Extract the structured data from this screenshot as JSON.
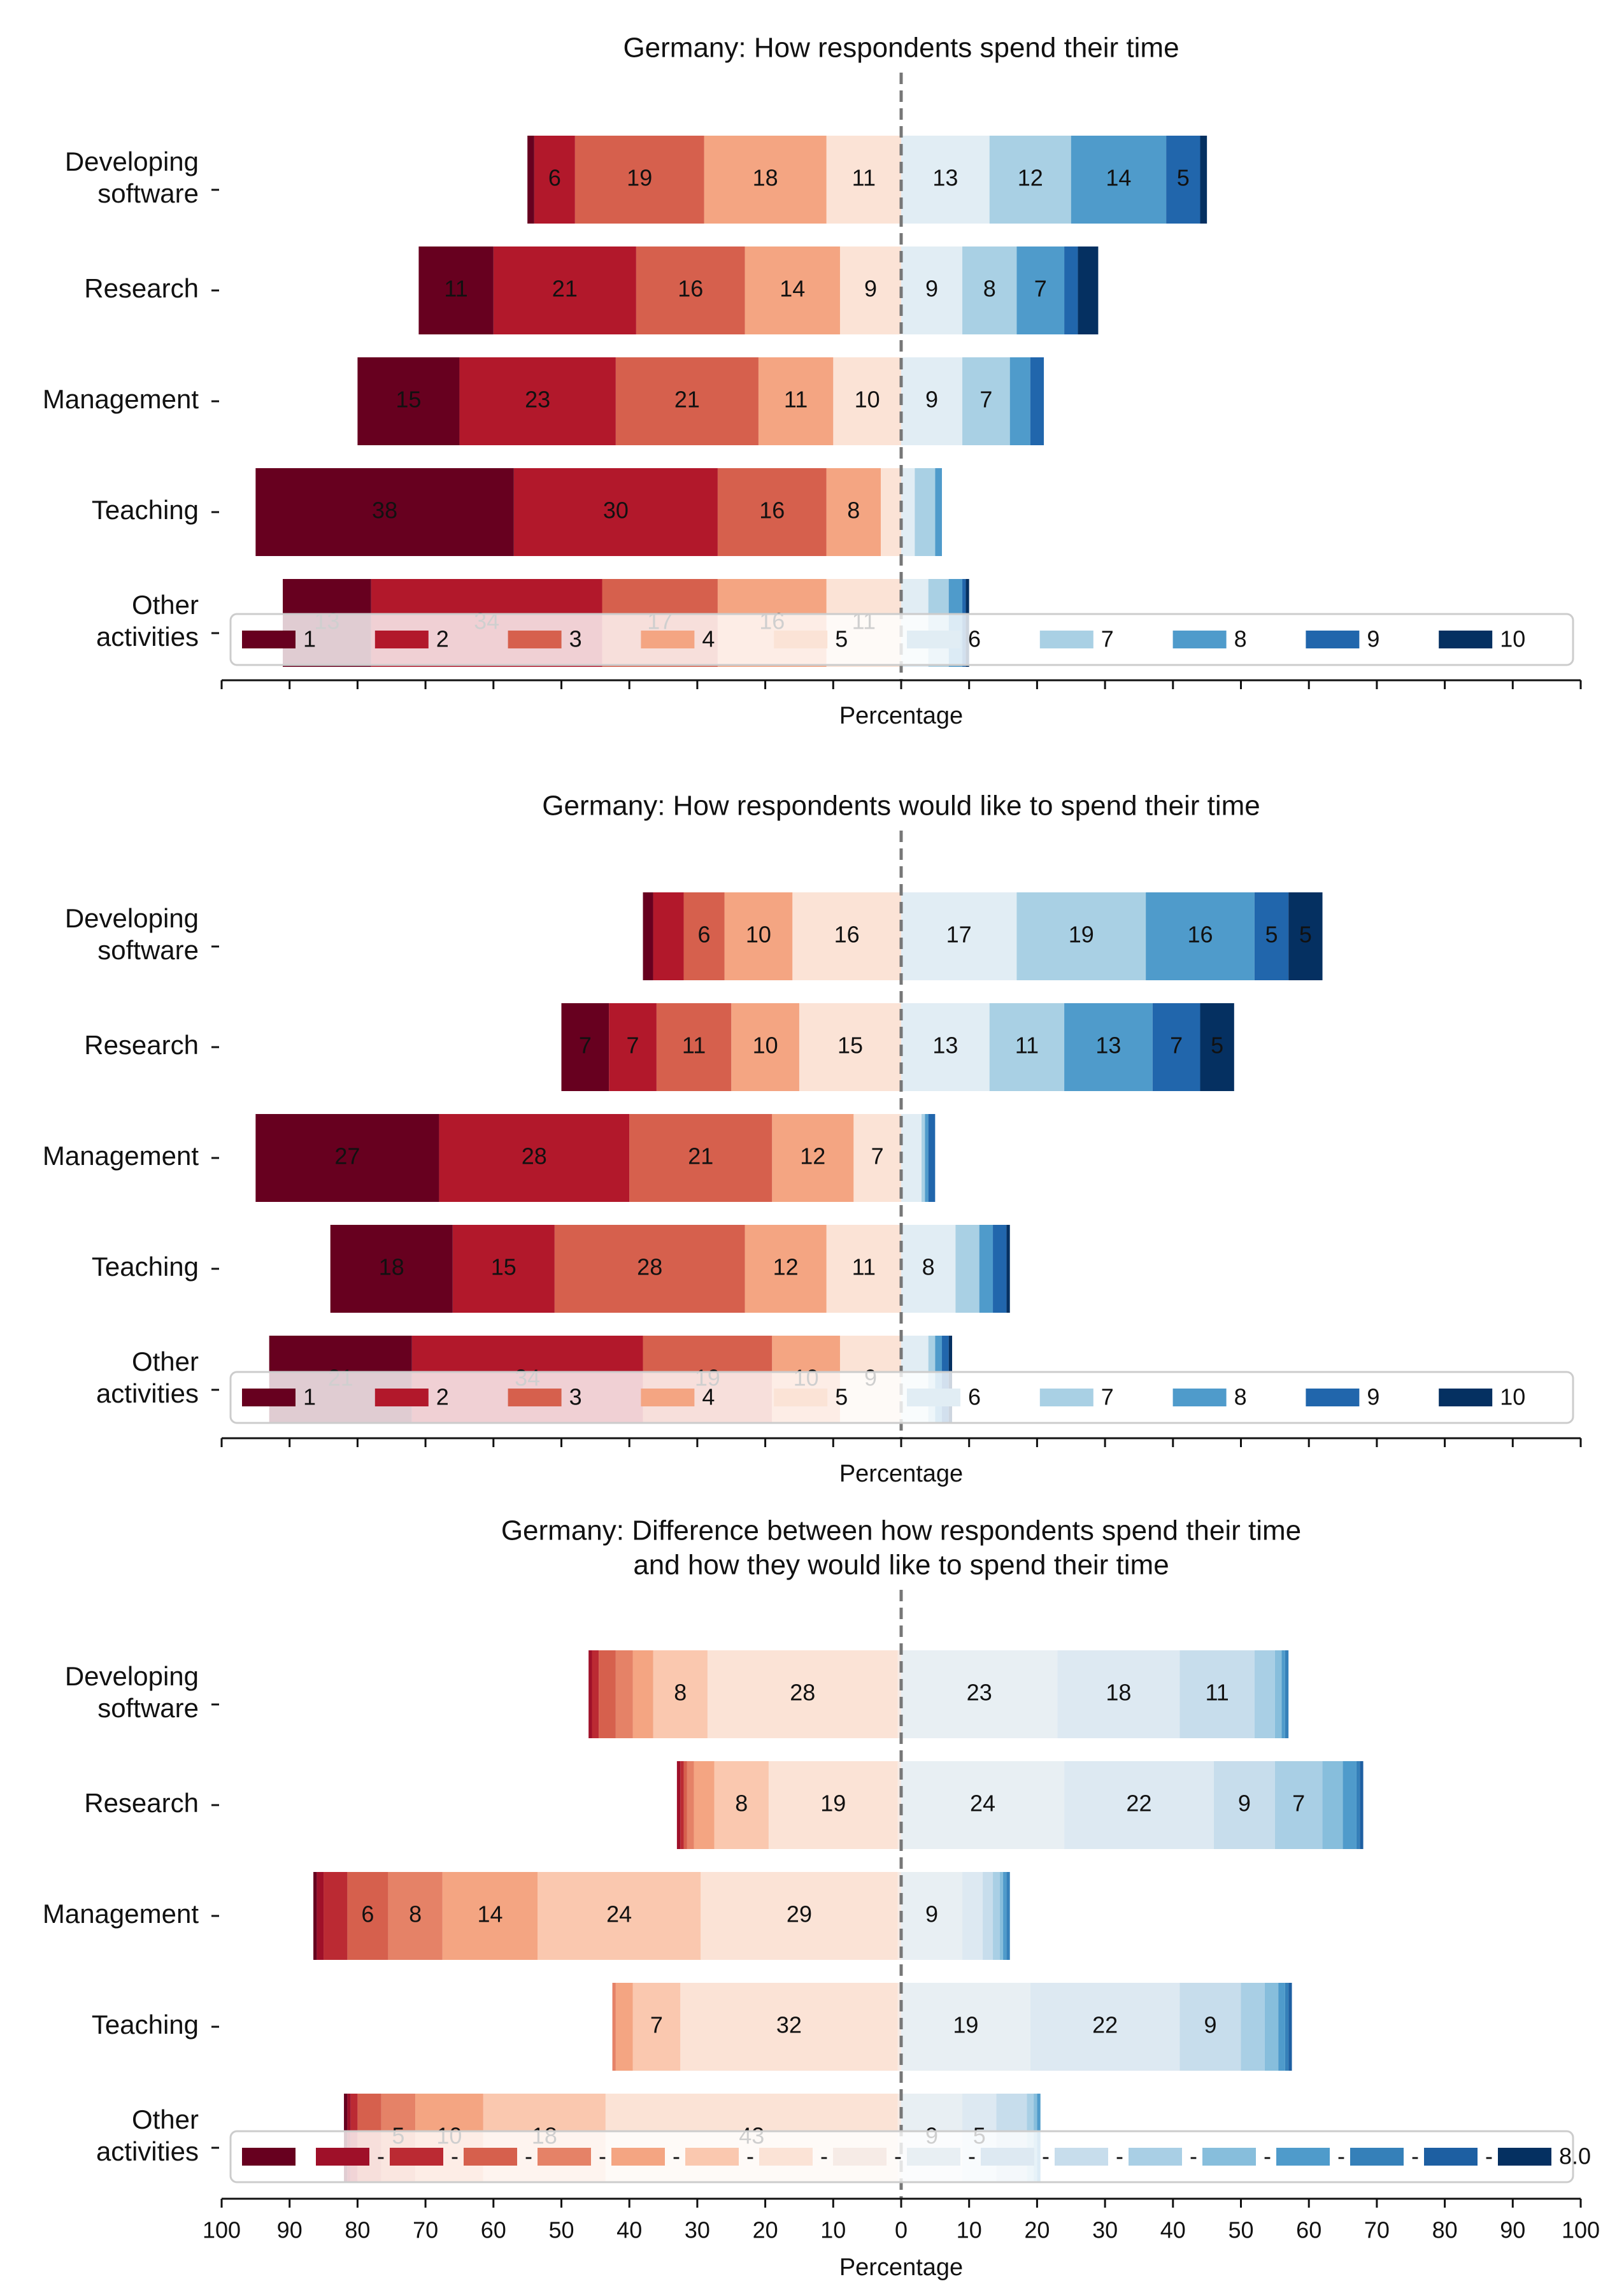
{
  "chart_data": [
    {
      "type": "bar",
      "orientation": "horizontal-diverging",
      "title": "Germany: How respondents spend their time",
      "xlabel": "Percentage",
      "xlim": [
        -100,
        100
      ],
      "categories": [
        "Developing software",
        "Research",
        "Management",
        "Teaching",
        "Other activities"
      ],
      "category_lines": [
        [
          "Developing",
          "software"
        ],
        [
          "Research"
        ],
        [
          "Management"
        ],
        [
          "Teaching"
        ],
        [
          "Other",
          "activities"
        ]
      ],
      "legend": [
        "1",
        "2",
        "3",
        "4",
        "5",
        "6",
        "7",
        "8",
        "9",
        "10"
      ],
      "legend_placement": "bottom, overlapping last row",
      "colors": [
        "#67001f",
        "#b2182b",
        "#d6604d",
        "#f4a582",
        "#fbe3d6",
        "#e1edf4",
        "#a9d0e4",
        "#4f9bcb",
        "#2166ac",
        "#053061"
      ],
      "series": [
        {
          "name": "1",
          "values": [
            1,
            11,
            15,
            38,
            13
          ]
        },
        {
          "name": "2",
          "values": [
            6,
            21,
            23,
            30,
            34
          ]
        },
        {
          "name": "3",
          "values": [
            19,
            16,
            21,
            16,
            17
          ]
        },
        {
          "name": "4",
          "values": [
            18,
            14,
            11,
            8,
            16
          ]
        },
        {
          "name": "5",
          "values": [
            11,
            9,
            10,
            3,
            11
          ]
        },
        {
          "name": "6",
          "values": [
            13,
            9,
            9,
            2,
            4
          ]
        },
        {
          "name": "7",
          "values": [
            12,
            8,
            7,
            3,
            3
          ]
        },
        {
          "name": "8",
          "values": [
            14,
            7,
            3,
            1,
            2
          ]
        },
        {
          "name": "9",
          "values": [
            5,
            2,
            2,
            0,
            0.5
          ]
        },
        {
          "name": "10",
          "values": [
            1,
            3,
            0,
            0,
            0.5
          ]
        }
      ],
      "grid": false,
      "x_tick_labels_shown": false
    },
    {
      "type": "bar",
      "orientation": "horizontal-diverging",
      "title": "Germany: How respondents would like to spend their time",
      "xlabel": "Percentage",
      "xlim": [
        -100,
        100
      ],
      "categories": [
        "Developing software",
        "Research",
        "Management",
        "Teaching",
        "Other activities"
      ],
      "category_lines": [
        [
          "Developing",
          "software"
        ],
        [
          "Research"
        ],
        [
          "Management"
        ],
        [
          "Teaching"
        ],
        [
          "Other",
          "activities"
        ]
      ],
      "legend": [
        "1",
        "2",
        "3",
        "4",
        "5",
        "6",
        "7",
        "8",
        "9",
        "10"
      ],
      "legend_placement": "bottom, overlapping last row",
      "colors": [
        "#67001f",
        "#b2182b",
        "#d6604d",
        "#f4a582",
        "#fbe3d6",
        "#e1edf4",
        "#a9d0e4",
        "#4f9bcb",
        "#2166ac",
        "#053061"
      ],
      "series": [
        {
          "name": "1",
          "values": [
            1.5,
            7,
            27,
            18,
            21
          ]
        },
        {
          "name": "2",
          "values": [
            4.5,
            7,
            28,
            15,
            34
          ]
        },
        {
          "name": "3",
          "values": [
            6,
            11,
            21,
            28,
            19
          ]
        },
        {
          "name": "4",
          "values": [
            10,
            10,
            12,
            12,
            10
          ]
        },
        {
          "name": "5",
          "values": [
            16,
            15,
            7,
            11,
            9
          ]
        },
        {
          "name": "6",
          "values": [
            17,
            13,
            3,
            8,
            4
          ]
        },
        {
          "name": "7",
          "values": [
            19,
            11,
            0.5,
            3.5,
            1
          ]
        },
        {
          "name": "8",
          "values": [
            16,
            13,
            0.5,
            2,
            1
          ]
        },
        {
          "name": "9",
          "values": [
            5,
            7,
            1,
            2,
            1
          ]
        },
        {
          "name": "10",
          "values": [
            5,
            5,
            0,
            0.5,
            0.5
          ]
        }
      ],
      "grid": false,
      "x_tick_labels_shown": false
    },
    {
      "type": "bar",
      "orientation": "horizontal-diverging",
      "title": "Germany: Difference between how respondents spend their time and how they would like to spend their time",
      "title_lines": [
        "Germany: Difference between how respondents spend their time",
        "and how they would like to spend their time"
      ],
      "xlabel": "Percentage",
      "xlim": [
        -100,
        100
      ],
      "x_ticks": [
        -100,
        -90,
        -80,
        -70,
        -60,
        -50,
        -40,
        -30,
        -20,
        -10,
        0,
        10,
        20,
        30,
        40,
        50,
        60,
        70,
        80,
        90,
        100
      ],
      "x_tick_labels": [
        "100",
        "90",
        "80",
        "70",
        "60",
        "50",
        "40",
        "30",
        "20",
        "10",
        "0",
        "10",
        "20",
        "30",
        "40",
        "50",
        "60",
        "70",
        "80",
        "90",
        "100"
      ],
      "categories": [
        "Developing software",
        "Research",
        "Management",
        "Teaching",
        "Other activities"
      ],
      "category_lines": [
        [
          "Developing",
          "software"
        ],
        [
          "Research"
        ],
        [
          "Management"
        ],
        [
          "Teaching"
        ],
        [
          "Other",
          "activities"
        ]
      ],
      "legend": [
        "",
        "-",
        "-",
        "-",
        "-",
        "-",
        "-",
        "-",
        "-",
        "-",
        "-",
        "-",
        "-",
        "-",
        "-",
        "-",
        "-",
        "8.0"
      ],
      "legend_placement": "bottom, overlapping last row",
      "colors": [
        "#67001f",
        "#9f1029",
        "#bb2a33",
        "#d6604d",
        "#e58267",
        "#f4a582",
        "#fac8af",
        "#fbe3d6",
        "#f6ebe6",
        "#e8eff3",
        "#dde9f2",
        "#c7ddec",
        "#a9cfe5",
        "#87bedc",
        "#4f9bcb",
        "#3580b9",
        "#1d5fa2",
        "#053061"
      ],
      "series": [
        {
          "name": "",
          "values": [
            0,
            0,
            0.5,
            0,
            0.5
          ]
        },
        {
          "name": "-",
          "values": [
            0.5,
            0.5,
            1,
            0,
            0.5
          ]
        },
        {
          "name": "-",
          "values": [
            1,
            0.5,
            3.5,
            0,
            1
          ]
        },
        {
          "name": "-",
          "values": [
            2.5,
            0.5,
            6,
            0,
            3.5
          ]
        },
        {
          "name": "-",
          "values": [
            2.5,
            1,
            8,
            0.5,
            5
          ]
        },
        {
          "name": "-",
          "values": [
            3,
            3,
            14,
            2.5,
            10
          ]
        },
        {
          "name": "-",
          "values": [
            8,
            8,
            24,
            7,
            18
          ]
        },
        {
          "name": "-",
          "values": [
            28,
            19,
            29,
            32,
            43
          ]
        },
        {
          "name": "-",
          "values": [
            0.5,
            0.5,
            0.5,
            0.5,
            0.5
          ]
        },
        {
          "name": "-",
          "values": [
            23,
            24,
            9,
            19,
            9
          ]
        },
        {
          "name": "-",
          "values": [
            18,
            22,
            3,
            22,
            5
          ]
        },
        {
          "name": "-",
          "values": [
            11,
            9,
            1.5,
            9,
            4.5
          ]
        },
        {
          "name": "-",
          "values": [
            3,
            7,
            1,
            3.5,
            1
          ]
        },
        {
          "name": "-",
          "values": [
            1,
            3,
            0.5,
            2,
            0.5
          ]
        },
        {
          "name": "-",
          "values": [
            0.5,
            2,
            0.5,
            1,
            0.5
          ]
        },
        {
          "name": "-",
          "values": [
            0.5,
            0.5,
            0.5,
            0.5,
            0
          ]
        },
        {
          "name": "-",
          "values": [
            0,
            0.5,
            0,
            0.5,
            0
          ]
        },
        {
          "name": "8.0",
          "values": [
            0,
            0,
            0,
            0,
            0
          ]
        }
      ],
      "grid": false
    }
  ]
}
